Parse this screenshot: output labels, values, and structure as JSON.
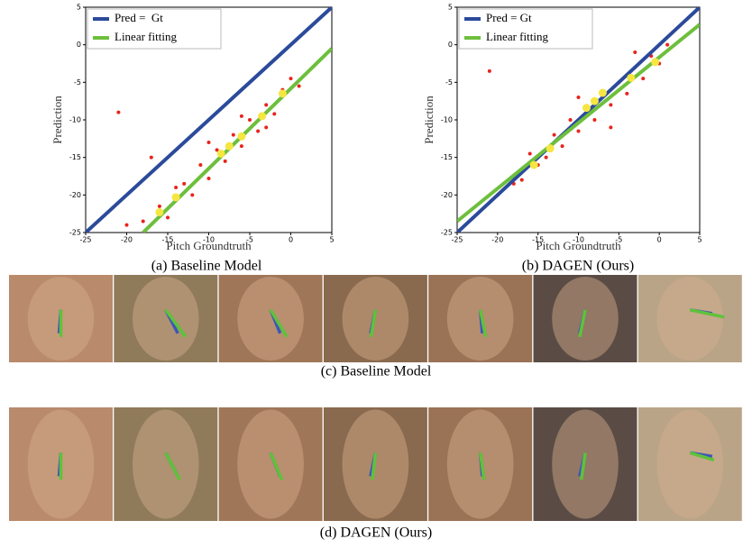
{
  "chart_data": [
    {
      "type": "scatter",
      "xlabel": "Pitch Groundtruth",
      "ylabel": "Prediction",
      "caption": "(a) Baseline Model",
      "xlim": [
        -25,
        5
      ],
      "ylim": [
        -25,
        5
      ],
      "xticks": [
        -25,
        -20,
        -15,
        -10,
        -5,
        0,
        5
      ],
      "yticks": [
        -25,
        -20,
        -15,
        -10,
        -5,
        0,
        5
      ],
      "series": [
        {
          "name": "Pred =  Gt",
          "color": "#2b4a9b",
          "x": [
            -25,
            5
          ],
          "values": [
            -25,
            5
          ]
        },
        {
          "name": "Linear fitting",
          "color": "#6dbf3c",
          "x": [
            -18,
            5
          ],
          "values": [
            -25,
            -0.5
          ]
        }
      ],
      "samples": {
        "color": "#e8241c",
        "x": [
          -20,
          -18,
          -16,
          -15,
          -13,
          -12,
          -11,
          -10,
          -9,
          -8,
          -7,
          -6,
          -5,
          -4,
          -3,
          -2,
          -1,
          0,
          1,
          -14,
          -21,
          -10,
          -6,
          -3,
          -17
        ],
        "values": [
          -24,
          -23.5,
          -21.5,
          -23,
          -18.5,
          -20,
          -16,
          -17.8,
          -14,
          -15.5,
          -12,
          -13.5,
          -10,
          -11.5,
          -8,
          -9.2,
          -6,
          -4.5,
          -5.5,
          -19,
          -9,
          -13,
          -9.5,
          -11,
          -15
        ]
      },
      "bin_means": {
        "color": "#f5e642",
        "x": [
          -16,
          -14,
          -8.5,
          -7.5,
          -6,
          -3.5,
          -1
        ],
        "values": [
          -22.3,
          -20.3,
          -14.5,
          -13.5,
          -12.2,
          -9.5,
          -6.5
        ]
      }
    },
    {
      "type": "scatter",
      "xlabel": "Pitch Groundtruth",
      "ylabel": "Prediction",
      "caption": "(b) DAGEN (Ours)",
      "xlim": [
        -25,
        5
      ],
      "ylim": [
        -25,
        5
      ],
      "xticks": [
        -25,
        -20,
        -15,
        -10,
        -5,
        0,
        5
      ],
      "yticks": [
        -25,
        -20,
        -15,
        -10,
        -5,
        0,
        5
      ],
      "series": [
        {
          "name": "Pred = Gt",
          "color": "#2b4a9b",
          "x": [
            -25,
            5
          ],
          "values": [
            -25,
            5
          ]
        },
        {
          "name": "Linear fitting",
          "color": "#6dbf3c",
          "x": [
            -25,
            5
          ],
          "values": [
            -23.5,
            2.7
          ]
        }
      ],
      "samples": {
        "color": "#e8241c",
        "x": [
          -20,
          -18,
          -16,
          -15,
          -13,
          -12,
          -11,
          -10,
          -9,
          -8,
          -7,
          -6,
          -5,
          -4,
          -3,
          -2,
          -1,
          0,
          1,
          -14,
          -21,
          -10,
          -6,
          -3,
          -17
        ],
        "values": [
          -20,
          -18.5,
          -14.5,
          -16,
          -12,
          -13.5,
          -10,
          -11.5,
          -8.5,
          -10,
          -6.5,
          -8,
          -5,
          -6.5,
          -3,
          -4.5,
          -1.5,
          -2.5,
          0,
          -15,
          -3.5,
          -7,
          -11,
          -1,
          -18
        ]
      },
      "bin_means": {
        "color": "#f5e642",
        "x": [
          -15.5,
          -13.5,
          -9,
          -8,
          -7,
          -3.5,
          -0.5
        ],
        "values": [
          -16,
          -13.8,
          -8.4,
          -7.5,
          -6.4,
          -4.4,
          -2.3
        ]
      }
    }
  ],
  "image_rows": [
    {
      "caption": "(c) Baseline Model"
    },
    {
      "caption": "(d) DAGEN (Ours)"
    }
  ]
}
